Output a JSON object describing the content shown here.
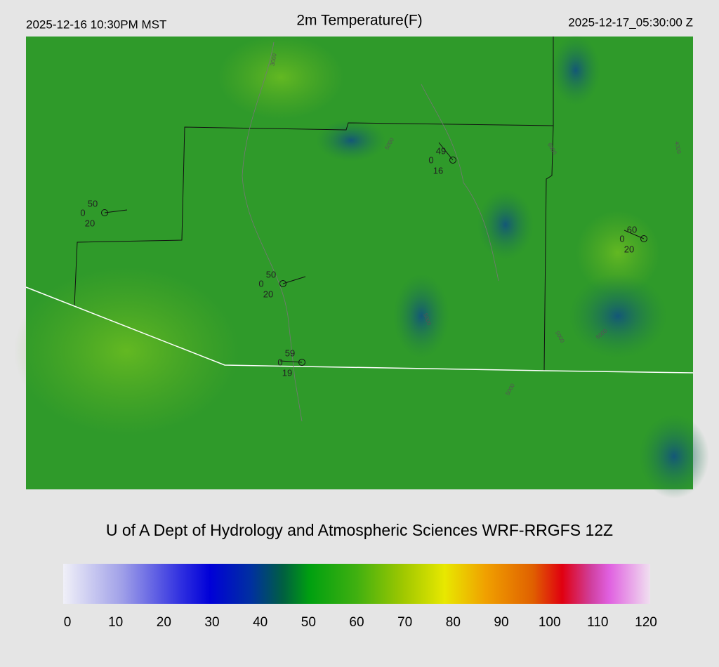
{
  "header": {
    "local_time": "2025-12-16 10:30PM MST",
    "title": "2m Temperature(F)",
    "utc_time": "2025-12-17_05:30:00 Z"
  },
  "stations": [
    {
      "top": "50",
      "left": "0",
      "bottom": "20"
    },
    {
      "top": "49",
      "left": "0",
      "bottom": "16"
    },
    {
      "top": "60",
      "left": "0",
      "bottom": "20"
    },
    {
      "top": "50",
      "left": "0",
      "bottom": "20"
    },
    {
      "top": "59",
      "left": "0",
      "bottom": "19"
    }
  ],
  "contour_labels": [
    "3000",
    "5000",
    "6000",
    "5000",
    "5000",
    "6000",
    "4000",
    "5000"
  ],
  "footer": "U of A Dept of Hydrology and Atmospheric Sciences WRF-RRGFS 12Z",
  "colorbar": {
    "range": [
      0,
      120
    ],
    "ticks": [
      0,
      10,
      20,
      30,
      40,
      50,
      60,
      70,
      80,
      90,
      100,
      110,
      120
    ]
  }
}
